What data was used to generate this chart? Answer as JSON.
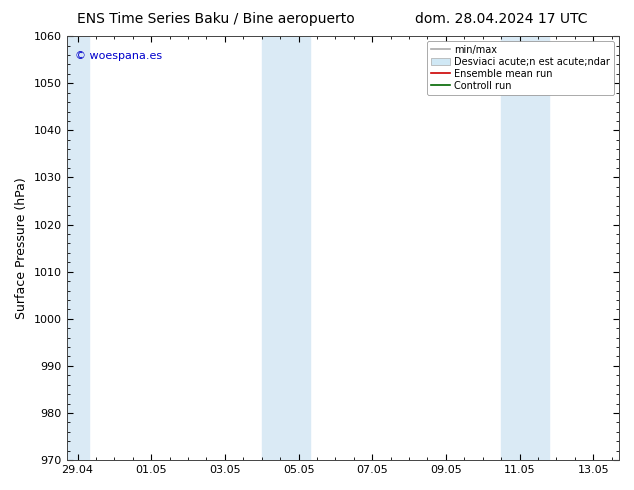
{
  "title_left": "ENS Time Series Baku / Bine aeropuerto",
  "title_right": "dom. 28.04.2024 17 UTC",
  "ylabel": "Surface Pressure (hPa)",
  "ylim": [
    970,
    1060
  ],
  "yticks": [
    970,
    980,
    990,
    1000,
    1010,
    1020,
    1030,
    1040,
    1050,
    1060
  ],
  "xtick_labels": [
    "29.04",
    "01.05",
    "03.05",
    "05.05",
    "07.05",
    "09.05",
    "11.05",
    "13.05"
  ],
  "xtick_positions": [
    0,
    2,
    4,
    6,
    8,
    10,
    12,
    14
  ],
  "xlim": [
    -0.3,
    14.7
  ],
  "shaded_bands": [
    {
      "x_start": -0.3,
      "x_end": 0.3
    },
    {
      "x_start": 5.0,
      "x_end": 6.3
    },
    {
      "x_start": 11.5,
      "x_end": 12.8
    }
  ],
  "watermark": "© woespana.es",
  "watermark_color": "#0000cc",
  "background_color": "#ffffff",
  "shaded_color": "#daeaf5",
  "title_fontsize": 10,
  "tick_fontsize": 8,
  "ylabel_fontsize": 9,
  "legend_items": [
    {
      "label": "min/max",
      "type": "line",
      "color": "#aaaaaa"
    },
    {
      "label": "Desviaci acute;n est acute;ndar",
      "type": "patch",
      "color": "#d0e8f5"
    },
    {
      "label": "Ensemble mean run",
      "type": "line",
      "color": "#cc0000"
    },
    {
      "label": "Controll run",
      "type": "line",
      "color": "#006600"
    }
  ]
}
